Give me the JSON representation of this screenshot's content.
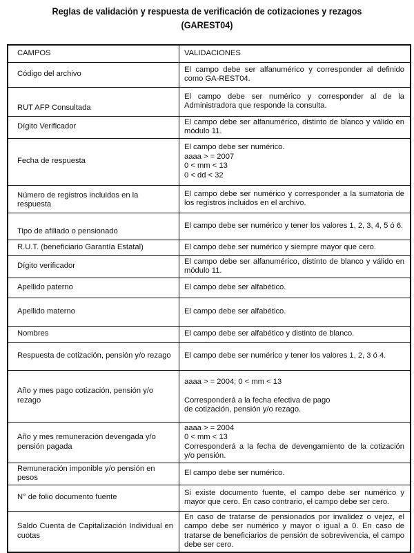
{
  "title": "Reglas de validación y respuesta de verificación de cotizaciones y rezagos\n(GAREST04)",
  "headers": [
    "CAMPOS",
    "VALIDACIONES"
  ],
  "rows": [
    {
      "campo": "Código del archivo",
      "validacion": "El campo debe ser alfanumérico y corresponder al definido como GA-REST04."
    },
    {
      "campo": "RUT AFP Consultada",
      "validacion": "El campo debe ser numérico y corresponder al de la Administradora que responde la consulta."
    },
    {
      "campo": "Dígito Verificador",
      "validacion": "El campo debe ser alfanumérico, distinto de blanco y válido en módulo 11."
    },
    {
      "campo": "Fecha de respuesta",
      "validacion": "El campo debe ser numérico.\naaaa > = 2007\n0 < mm < 13\n0 < dd < 32"
    },
    {
      "campo": "Número de registros incluidos en la respuesta",
      "validacion": "El campo debe ser numérico y corresponder a la sumatoria de los registros incluidos en el archivo."
    },
    {
      "campo": "Tipo de afiliado o pensionado",
      "validacion": "El campo debe ser numérico y tener los valores 1, 2, 3, 4, 5 ó 6."
    },
    {
      "campo": "R.U.T. (beneficiario Garantía Estatal)",
      "validacion": "El campo debe ser numérico y siempre mayor que cero."
    },
    {
      "campo": "Dígito verificador",
      "validacion": "El campo debe ser alfanumérico, distinto de blanco y válido en módulo 11."
    },
    {
      "campo": "Apellido paterno",
      "validacion": "El campo debe ser alfabético."
    },
    {
      "campo": "Apellido materno",
      "validacion": "El campo debe ser alfabético."
    },
    {
      "campo": "Nombres",
      "validacion": "El campo debe ser alfabético y distinto de blanco."
    },
    {
      "campo": "Respuesta de cotización, pensión y/o rezago",
      "validacion": "El campo debe ser numérico y tener los valores 1, 2, 3 ó 4."
    },
    {
      "campo": "Año y mes pago cotización, pensión y/o rezago",
      "validacion": "aaaa > = 2004; 0 < mm < 13\n\nCorresponderá a la fecha efectiva de pago\n de cotización, pensión y/o rezago."
    },
    {
      "campo": "Año y mes remuneración devengada y/o pensión pagada",
      "validacion": "aaaa > = 2004\n0 < mm < 13\nCorresponderá a la fecha de devengamiento de la cotización y/o pensión."
    },
    {
      "campo": "Remuneración imponible y/o pensión en pesos",
      "validacion": "El campo debe ser numérico."
    },
    {
      "campo": "N° de folio documento fuente",
      "validacion": "Si existe documento fuente, el campo debe ser numérico y mayor que cero. En caso contrario, el campo debe ser cero."
    },
    {
      "campo": "Saldo Cuenta de Capitalización  Individual en cuotas",
      "validacion": "En caso de tratarse de pensionados por invalidez o vejez, el campo debe ser numérico y mayor o igual a 0. En caso de tratarse de beneficiarios de pensión de sobrevivencia, el campo debe ser cero."
    }
  ]
}
